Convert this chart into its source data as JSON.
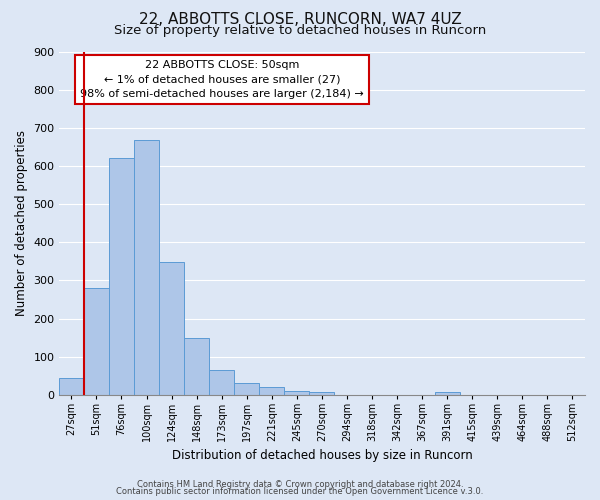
{
  "title": "22, ABBOTTS CLOSE, RUNCORN, WA7 4UZ",
  "subtitle": "Size of property relative to detached houses in Runcorn",
  "xlabel": "Distribution of detached houses by size in Runcorn",
  "ylabel": "Number of detached properties",
  "bin_labels": [
    "27sqm",
    "51sqm",
    "76sqm",
    "100sqm",
    "124sqm",
    "148sqm",
    "173sqm",
    "197sqm",
    "221sqm",
    "245sqm",
    "270sqm",
    "294sqm",
    "318sqm",
    "342sqm",
    "367sqm",
    "391sqm",
    "415sqm",
    "439sqm",
    "464sqm",
    "488sqm",
    "512sqm"
  ],
  "bar_heights": [
    45,
    280,
    622,
    668,
    347,
    148,
    65,
    32,
    20,
    10,
    8,
    0,
    0,
    0,
    0,
    8,
    0,
    0,
    0,
    0,
    0
  ],
  "bar_color": "#aec6e8",
  "bar_edge_color": "#5b9bd5",
  "background_color": "#dde7f5",
  "fig_background_color": "#dde7f5",
  "grid_color": "#ffffff",
  "vline_color": "#cc0000",
  "ylim": [
    0,
    900
  ],
  "yticks": [
    0,
    100,
    200,
    300,
    400,
    500,
    600,
    700,
    800,
    900
  ],
  "annotation_line1": "22 ABBOTTS CLOSE: 50sqm",
  "annotation_line2": "← 1% of detached houses are smaller (27)",
  "annotation_line3": "98% of semi-detached houses are larger (2,184) →",
  "annotation_box_color": "#ffffff",
  "annotation_box_edge": "#cc0000",
  "footer_line1": "Contains HM Land Registry data © Crown copyright and database right 2024.",
  "footer_line2": "Contains public sector information licensed under the Open Government Licence v.3.0.",
  "title_fontsize": 11,
  "subtitle_fontsize": 9.5,
  "tick_fontsize": 7,
  "ylabel_fontsize": 8.5,
  "xlabel_fontsize": 8.5,
  "annotation_fontsize": 8,
  "footer_fontsize": 6
}
